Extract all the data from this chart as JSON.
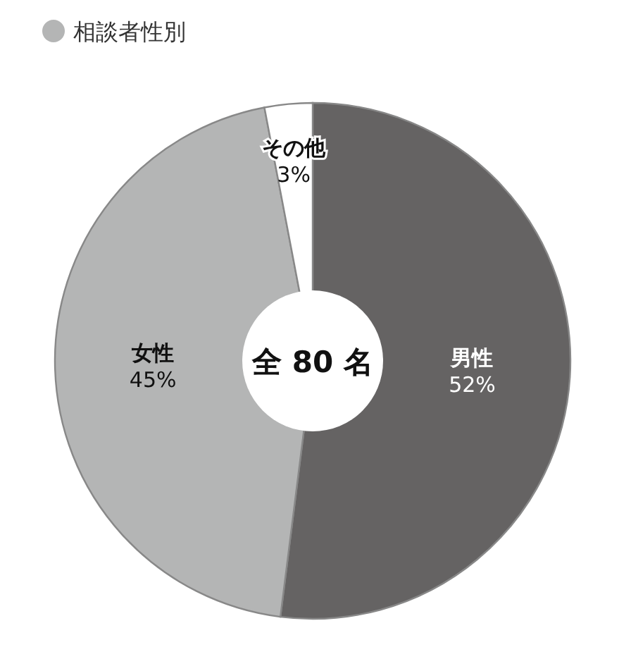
{
  "chart_data": {
    "type": "donut",
    "title": "相談者性別",
    "categories": [
      "男性",
      "女性",
      "その他"
    ],
    "values": [
      52,
      45,
      3
    ],
    "value_labels": [
      "52%",
      "45%",
      "3%"
    ],
    "colors": [
      "#656363",
      "#b4b5b5",
      "#ffffff"
    ],
    "annotations": [
      "全 80 名"
    ]
  }
}
